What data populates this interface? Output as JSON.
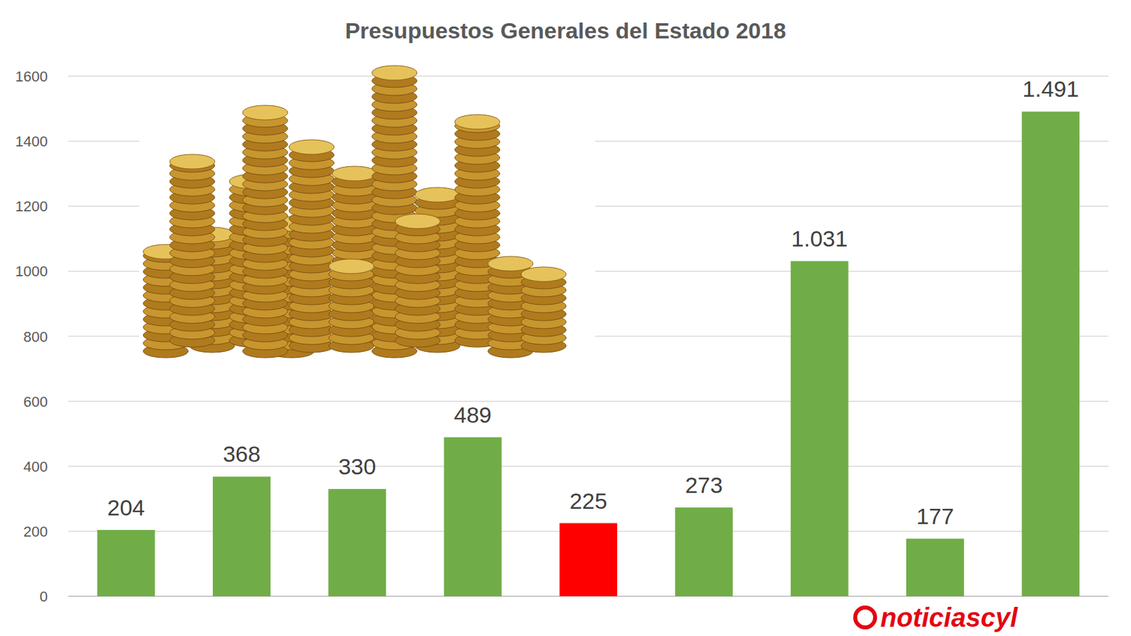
{
  "chart_data": {
    "type": "bar",
    "title": "Presupuestos Generales del Estado 2018",
    "categories": [
      null,
      null,
      null,
      null,
      null,
      null,
      null,
      null,
      null
    ],
    "values": [
      204,
      368,
      330,
      489,
      225,
      273,
      1031,
      177,
      1491
    ],
    "value_labels": [
      "204",
      "368",
      "330",
      "489",
      "225",
      "273",
      "1.031",
      "177",
      "1.491"
    ],
    "colors": [
      "#70ad47",
      "#70ad47",
      "#70ad47",
      "#70ad47",
      "#ff0000",
      "#70ad47",
      "#70ad47",
      "#70ad47",
      "#70ad47"
    ],
    "ylim": [
      0,
      1600
    ],
    "yticks": [
      0,
      200,
      400,
      600,
      800,
      1000,
      1200,
      1400,
      1600
    ],
    "grid": true,
    "data_labels": true,
    "annotations": [
      "noticiascyl"
    ]
  }
}
